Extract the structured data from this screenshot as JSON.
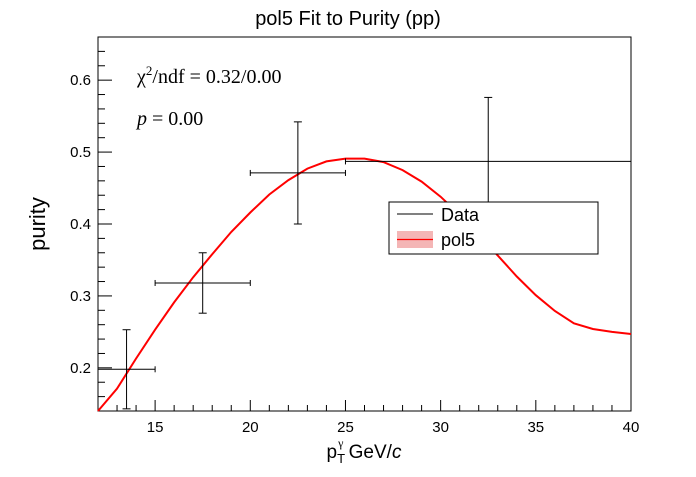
{
  "chart_data": {
    "type": "scatter",
    "title": "pol5 Fit to Purity (pp)",
    "xlabel": {
      "main": "p",
      "sub": "T",
      "sup": "γ",
      "unit": " GeV/",
      "unit_italic": "c"
    },
    "ylabel": "purity",
    "xlim": [
      12,
      40
    ],
    "ylim": [
      0.14,
      0.66
    ],
    "xticks": [
      15,
      20,
      25,
      30,
      35,
      40
    ],
    "yticks": [
      0.2,
      0.3,
      0.4,
      0.5,
      0.6
    ],
    "grid": false,
    "legend_position": "center-right",
    "annotations": {
      "chi2_symbol": "χ",
      "chi2_sup": "2",
      "chi2_text": "/ndf = 0.32/0.00",
      "p_symbol": "p",
      "p_text": " = 0.00"
    },
    "series": [
      {
        "name": "Data",
        "kind": "points",
        "color": "#000000",
        "points": [
          {
            "x": 13.5,
            "xerr": 1.5,
            "y": 0.198,
            "yerr": 0.055
          },
          {
            "x": 17.5,
            "xerr": 2.5,
            "y": 0.318,
            "yerr": 0.042
          },
          {
            "x": 22.5,
            "xerr": 2.5,
            "y": 0.471,
            "yerr": 0.071
          },
          {
            "x": 32.5,
            "xerr": 7.5,
            "y": 0.487,
            "yerr": 0.089
          }
        ]
      },
      {
        "name": "pol5",
        "kind": "curve",
        "color": "#ff0000",
        "legend_fill": "#f4b6b6",
        "points": [
          {
            "x": 12.0,
            "y": 0.14
          },
          {
            "x": 13.0,
            "y": 0.171
          },
          {
            "x": 14.0,
            "y": 0.213
          },
          {
            "x": 15.0,
            "y": 0.253
          },
          {
            "x": 16.0,
            "y": 0.291
          },
          {
            "x": 17.0,
            "y": 0.326
          },
          {
            "x": 18.0,
            "y": 0.358
          },
          {
            "x": 19.0,
            "y": 0.389
          },
          {
            "x": 20.0,
            "y": 0.416
          },
          {
            "x": 21.0,
            "y": 0.441
          },
          {
            "x": 22.0,
            "y": 0.461
          },
          {
            "x": 23.0,
            "y": 0.477
          },
          {
            "x": 24.0,
            "y": 0.487
          },
          {
            "x": 25.0,
            "y": 0.491
          },
          {
            "x": 26.0,
            "y": 0.491
          },
          {
            "x": 27.0,
            "y": 0.486
          },
          {
            "x": 28.0,
            "y": 0.475
          },
          {
            "x": 29.0,
            "y": 0.459
          },
          {
            "x": 30.0,
            "y": 0.438
          },
          {
            "x": 31.0,
            "y": 0.413
          },
          {
            "x": 32.0,
            "y": 0.385
          },
          {
            "x": 33.0,
            "y": 0.356
          },
          {
            "x": 34.0,
            "y": 0.327
          },
          {
            "x": 35.0,
            "y": 0.301
          },
          {
            "x": 36.0,
            "y": 0.279
          },
          {
            "x": 37.0,
            "y": 0.262
          },
          {
            "x": 38.0,
            "y": 0.254
          },
          {
            "x": 39.0,
            "y": 0.25
          },
          {
            "x": 40.0,
            "y": 0.247
          }
        ]
      }
    ]
  }
}
